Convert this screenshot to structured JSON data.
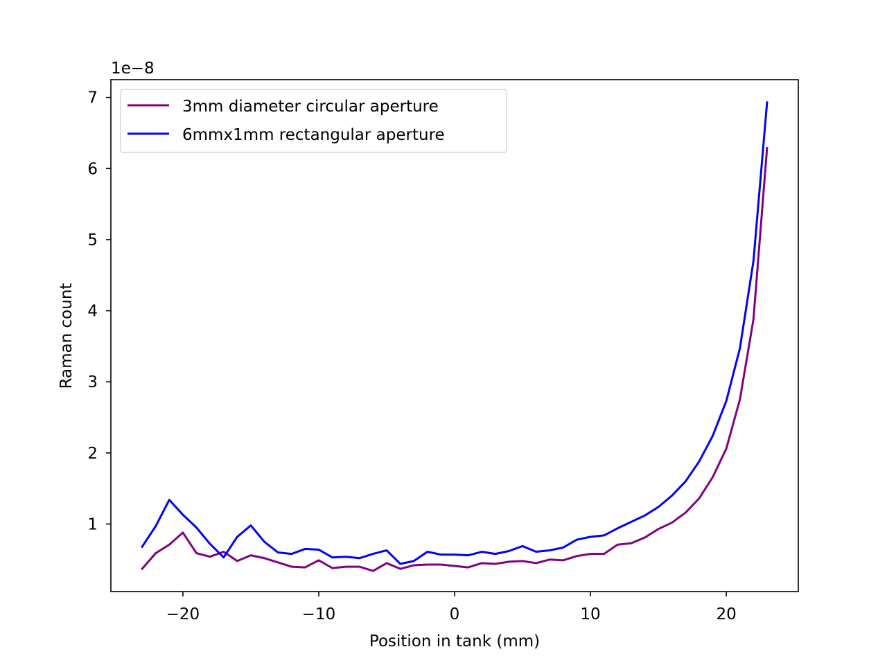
{
  "chart_data": {
    "type": "line",
    "title": "",
    "xlabel": "Position in tank (mm)",
    "ylabel": "Raman count",
    "y_offset_label": "1e−8",
    "xlim": [
      -25.3,
      25.3
    ],
    "ylim": [
      0.05,
      7.25
    ],
    "x_ticks": [
      -20,
      -10,
      0,
      10,
      20
    ],
    "x_tick_labels": [
      "−20",
      "−10",
      "0",
      "10",
      "20"
    ],
    "y_ticks": [
      1,
      2,
      3,
      4,
      5,
      6,
      7
    ],
    "y_tick_labels": [
      "1",
      "2",
      "3",
      "4",
      "5",
      "6",
      "7"
    ],
    "grid": false,
    "legend_position": "top-left",
    "x": [
      -23,
      -22,
      -21,
      -20,
      -19,
      -18,
      -17,
      -16,
      -15,
      -14,
      -13,
      -12,
      -11,
      -10,
      -9,
      -8,
      -7,
      -6,
      -5,
      -4,
      -3,
      -2,
      -1,
      0,
      1,
      2,
      3,
      4,
      5,
      6,
      7,
      8,
      9,
      10,
      11,
      12,
      13,
      14,
      15,
      16,
      17,
      18,
      19,
      20,
      21,
      22,
      23
    ],
    "series": [
      {
        "name": "3mm diameter circular aperture",
        "color": "#800080",
        "values": [
          0.37,
          0.59,
          0.71,
          0.88,
          0.59,
          0.54,
          0.61,
          0.48,
          0.56,
          0.52,
          0.46,
          0.4,
          0.39,
          0.49,
          0.38,
          0.4,
          0.4,
          0.34,
          0.45,
          0.37,
          0.42,
          0.43,
          0.43,
          0.41,
          0.39,
          0.45,
          0.44,
          0.47,
          0.48,
          0.45,
          0.5,
          0.49,
          0.55,
          0.58,
          0.58,
          0.71,
          0.73,
          0.81,
          0.93,
          1.02,
          1.16,
          1.36,
          1.66,
          2.06,
          2.75,
          3.88,
          6.29
        ]
      },
      {
        "name": "6mmx1mm rectangular aperture",
        "color": "#0000ff",
        "values": [
          0.68,
          0.97,
          1.34,
          1.13,
          0.95,
          0.72,
          0.53,
          0.82,
          0.98,
          0.75,
          0.6,
          0.58,
          0.65,
          0.64,
          0.53,
          0.54,
          0.52,
          0.58,
          0.63,
          0.44,
          0.48,
          0.61,
          0.57,
          0.57,
          0.56,
          0.61,
          0.58,
          0.62,
          0.69,
          0.61,
          0.63,
          0.67,
          0.78,
          0.82,
          0.84,
          0.94,
          1.03,
          1.12,
          1.24,
          1.4,
          1.6,
          1.88,
          2.24,
          2.73,
          3.47,
          4.7,
          6.93
        ]
      }
    ]
  }
}
